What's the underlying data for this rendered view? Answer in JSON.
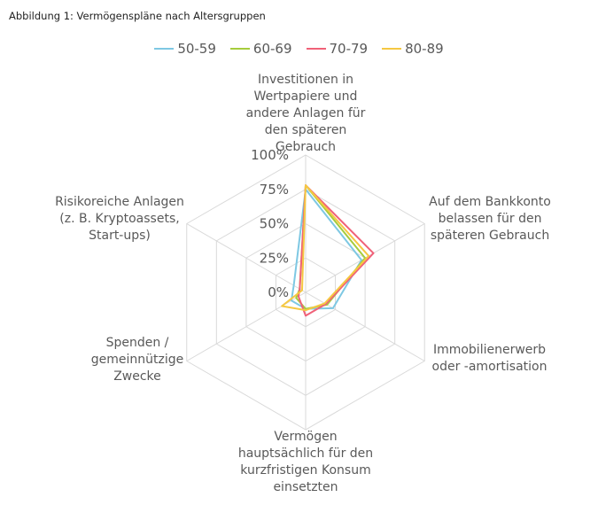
{
  "caption": "Abbildung 1: Vermögenspläne nach Altersgruppen",
  "chart_data": {
    "type": "radar",
    "title": "Abbildung 1: Vermögenspläne nach Altersgruppen",
    "axes": [
      "Investitionen in\nWertpapiere und\nandere Anlagen für\nden späteren\nGebrauch",
      "Auf dem Bankkonto\nbelassen für den\nspäteren Gebrauch",
      "Immobilienerwerb\noder -amortisation",
      "Vermögen\nhauptsächlich für den\nkurzfristigen Konsum\neinsetzten",
      "Spenden /\ngemeinnützige\nZwecke",
      "Risikoreiche Anlagen\n(z. B. Kryptoassets,\nStart-ups)"
    ],
    "ticks": [
      "0%",
      "25%",
      "50%",
      "75%",
      "100%"
    ],
    "rlim": [
      0,
      100
    ],
    "legend_position": "top",
    "series": [
      {
        "name": "50-59",
        "color": "#7ec8e3",
        "values": [
          75,
          47,
          23,
          12,
          12,
          10
        ]
      },
      {
        "name": "60-69",
        "color": "#a6cc3c",
        "values": [
          78,
          50,
          18,
          12,
          8,
          5
        ]
      },
      {
        "name": "70-79",
        "color": "#f06178",
        "values": [
          78,
          57,
          17,
          17,
          6,
          5
        ]
      },
      {
        "name": "80-89",
        "color": "#f5c842",
        "values": [
          78,
          53,
          16,
          13,
          20,
          3
        ]
      }
    ]
  }
}
